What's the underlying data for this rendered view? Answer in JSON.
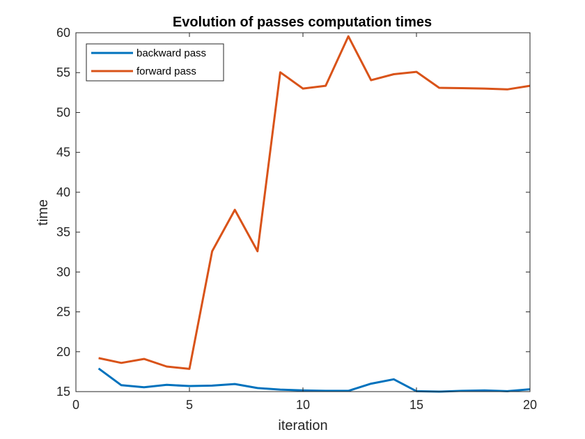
{
  "chart_data": {
    "type": "line",
    "title": "Evolution of passes computation times",
    "xlabel": "iteration",
    "ylabel": "time",
    "xlim": [
      0,
      20
    ],
    "ylim": [
      15,
      60
    ],
    "xticks": [
      0,
      5,
      10,
      15,
      20
    ],
    "yticks": [
      15,
      20,
      25,
      30,
      35,
      40,
      45,
      50,
      55,
      60
    ],
    "grid": false,
    "legend_position": "top-left",
    "x": [
      1,
      2,
      3,
      4,
      5,
      6,
      7,
      8,
      9,
      10,
      11,
      12,
      13,
      14,
      15,
      16,
      17,
      18,
      19,
      20
    ],
    "series": [
      {
        "name": "backward pass",
        "color": "#0072BD",
        "values": [
          17.9,
          15.8,
          15.55,
          15.85,
          15.7,
          15.75,
          15.95,
          15.45,
          15.25,
          15.15,
          15.1,
          15.1,
          16.0,
          16.55,
          15.05,
          15.0,
          15.1,
          15.15,
          15.05,
          15.3
        ]
      },
      {
        "name": "forward pass",
        "color": "#D95319",
        "values": [
          19.2,
          18.6,
          19.1,
          18.15,
          17.85,
          32.6,
          37.8,
          32.6,
          55.05,
          53.0,
          53.35,
          59.55,
          54.05,
          54.8,
          55.1,
          53.1,
          53.05,
          53.0,
          52.9,
          53.35
        ]
      }
    ]
  }
}
